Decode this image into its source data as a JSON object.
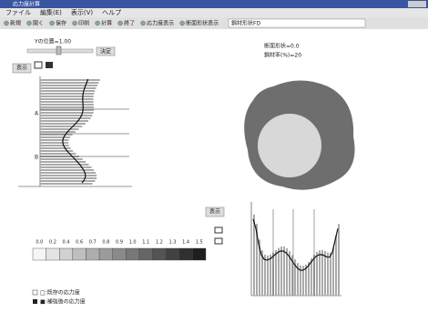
{
  "window": {
    "title": "応力度計算"
  },
  "menu": [
    "ファイル",
    "編集(E)",
    "表示(V)",
    "ヘルプ"
  ],
  "toolbar": [
    "新規",
    "開く",
    "保存",
    "印刷",
    "計算",
    "終了",
    "応力度表示",
    "断面形状表示"
  ],
  "input": "鋼材形状FD",
  "slider_label": "Yの位置=1.00",
  "slider_button": "決定",
  "left_button": "表示",
  "plot_labels": [
    "A",
    "B"
  ],
  "section": {
    "line1": "断面形状=0.0",
    "line2": "鋼材率(%)=20"
  },
  "bottom_button": "表示",
  "scale": [
    "0.0",
    "0.2",
    "0.4",
    "0.6",
    "0.7",
    "0.8",
    "0.9",
    "1.0",
    "1.1",
    "1.2",
    "1.3",
    "1.4",
    "1.5"
  ],
  "legend": [
    "□:既存の応力度",
    "■:補強後の応力度"
  ]
}
